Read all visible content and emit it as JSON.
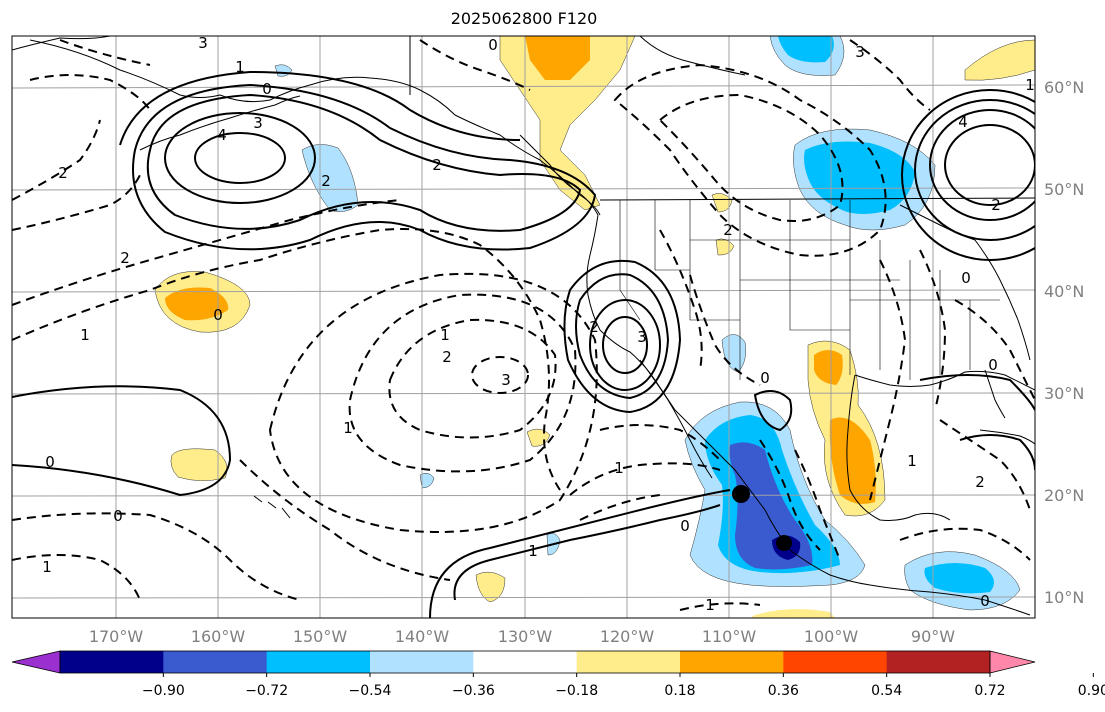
{
  "title": "2025062800 F120",
  "map": {
    "projection": "Lambert-like regional, eastern Pacific and North America",
    "lon_range": [
      -180,
      -80
    ],
    "lat_range": [
      8,
      65
    ],
    "lat_ticks": [
      "60°N",
      "50°N",
      "40°N",
      "30°N",
      "20°N",
      "10°N"
    ],
    "lon_ticks": [
      "170°W",
      "160°W",
      "150°W",
      "140°W",
      "130°W",
      "120°W",
      "110°W",
      "100°W",
      "90°W"
    ],
    "gridlines": true,
    "contour_labels": [
      "0",
      "3",
      "1",
      "0",
      "3",
      "4",
      "2",
      "2",
      "2",
      "2",
      "1",
      "0",
      "1",
      "2",
      "3",
      "1",
      "2",
      "3",
      "0",
      "2",
      "1",
      "0",
      "0",
      "1",
      "1",
      "1",
      "2",
      "4",
      "3",
      "0",
      "0",
      "1",
      "0",
      "2",
      "1",
      "0"
    ],
    "markers": [
      {
        "name": "black-dot-1",
        "lon": -108.5,
        "lat": 20.2
      },
      {
        "name": "black-dot-2",
        "lon": -104.5,
        "lat": 15.2
      }
    ]
  },
  "colorbar": {
    "tick_labels": [
      "−0.90",
      "−0.72",
      "−0.54",
      "−0.36",
      "−0.18",
      "0.18",
      "0.36",
      "0.54",
      "0.72",
      "0.90"
    ],
    "colors": [
      "#9b30d0",
      "#00008b",
      "#3a5bd0",
      "#00bfff",
      "#b0e2ff",
      "#ffffff",
      "#ffec8b",
      "#ffa500",
      "#ff4500",
      "#b22222",
      "#ff88aa"
    ]
  }
}
